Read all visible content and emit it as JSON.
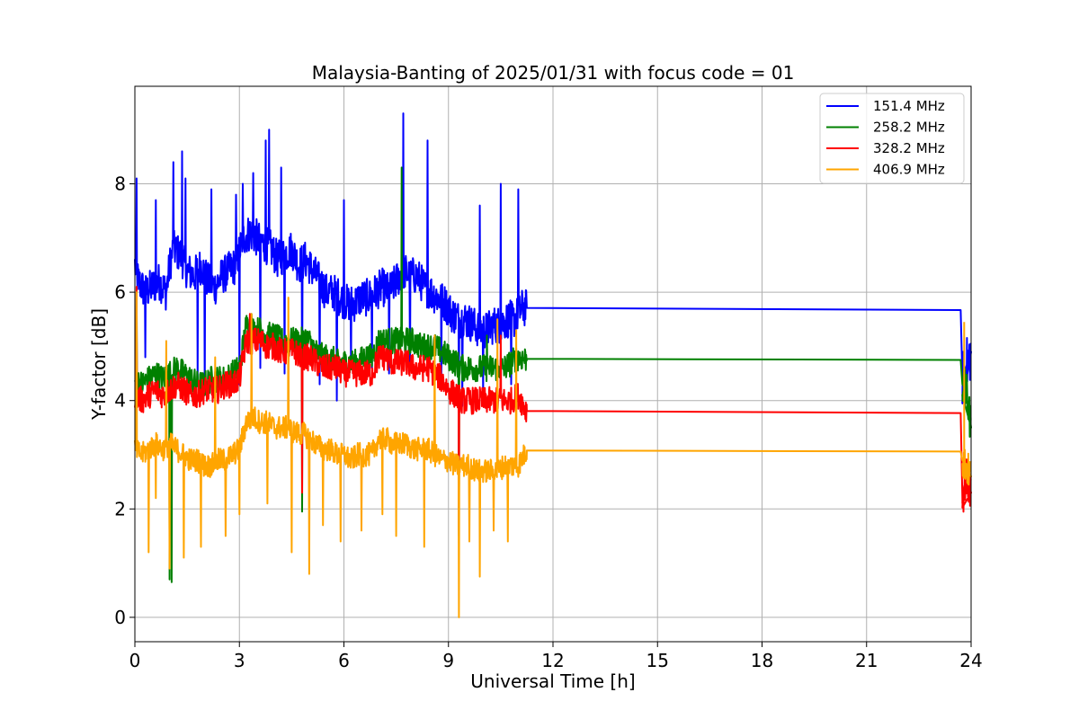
{
  "chart_data": {
    "type": "line",
    "title": "Malaysia-Banting of 2025/01/31 with focus code = 01",
    "xlabel": "Universal Time [h]",
    "ylabel": "Y-factor [dB]",
    "xlim": [
      0,
      24
    ],
    "ylim": [
      -0.45,
      9.8
    ],
    "x_ticks": [
      0,
      3,
      6,
      9,
      12,
      15,
      18,
      21,
      24
    ],
    "y_ticks": [
      0,
      2,
      4,
      6,
      8
    ],
    "grid": true,
    "legend_position": "top-right",
    "series": [
      {
        "name": "151.4 MHz",
        "color": "#0000ff",
        "x": [
          0,
          0.1,
          0.3,
          0.5,
          0.7,
          0.9,
          1.0,
          1.1,
          1.3,
          1.5,
          1.7,
          1.9,
          2.1,
          2.3,
          2.5,
          2.7,
          2.9,
          3.1,
          3.3,
          3.5,
          3.7,
          3.9,
          4.1,
          4.3,
          4.5,
          4.7,
          4.9,
          5.1,
          5.3,
          5.5,
          5.7,
          5.9,
          6.1,
          6.3,
          6.5,
          6.7,
          6.9,
          7.1,
          7.3,
          7.5,
          7.7,
          7.9,
          8.1,
          8.3,
          8.5,
          8.7,
          8.9,
          9.1,
          9.3,
          9.5,
          9.7,
          9.9,
          10.1,
          10.3,
          10.5,
          10.7,
          10.9,
          11.1,
          11.25,
          23.7,
          23.75,
          23.85,
          24.0
        ],
        "y": [
          6.5,
          6.2,
          6.0,
          6.1,
          6.2,
          6.0,
          6.5,
          6.8,
          6.7,
          6.4,
          6.3,
          6.5,
          6.2,
          6.1,
          6.3,
          6.4,
          6.5,
          7.0,
          7.1,
          7.0,
          6.9,
          6.8,
          6.6,
          6.7,
          6.8,
          6.5,
          6.6,
          6.4,
          6.2,
          6.0,
          6.0,
          5.9,
          5.8,
          5.8,
          5.9,
          5.9,
          6.0,
          6.1,
          6.0,
          6.2,
          6.4,
          6.3,
          6.3,
          6.1,
          6.0,
          5.9,
          5.8,
          5.6,
          5.5,
          5.5,
          5.4,
          5.3,
          5.3,
          5.4,
          5.4,
          5.5,
          5.5,
          5.7,
          5.71,
          5.67,
          4.4,
          4.6,
          4.9
        ],
        "spike_x": [
          0.05,
          0.6,
          1.1,
          1.35,
          1.45,
          2.2,
          2.9,
          3.1,
          3.4,
          3.75,
          3.85,
          4.2,
          6.0,
          7.7,
          8.4,
          9.9,
          10.5,
          11.0
        ],
        "spike_y": [
          8.1,
          7.7,
          8.4,
          8.6,
          8.1,
          7.9,
          7.8,
          8.0,
          8.2,
          8.8,
          9.0,
          8.3,
          7.7,
          9.3,
          8.8,
          7.6,
          8.0,
          7.9
        ],
        "dip_x": [
          0.3,
          1.8,
          2.0,
          3.0,
          3.6,
          4.3,
          4.8,
          5.3,
          5.8,
          6.2,
          6.8,
          7.3,
          7.9,
          8.8,
          9.3,
          9.4,
          10.0,
          10.8
        ],
        "dip_y": [
          4.8,
          4.4,
          4.1,
          4.3,
          4.6,
          4.5,
          4.1,
          4.3,
          4.0,
          4.6,
          4.6,
          4.5,
          4.6,
          4.3,
          4.0,
          3.9,
          4.1,
          4.3
        ]
      },
      {
        "name": "258.2 MHz",
        "color": "#008000",
        "x": [
          0,
          0.2,
          0.4,
          0.6,
          0.8,
          1.0,
          1.2,
          1.4,
          1.6,
          1.8,
          2.0,
          2.2,
          2.4,
          2.6,
          2.8,
          3.0,
          3.2,
          3.4,
          3.6,
          3.8,
          4.0,
          4.2,
          4.4,
          4.6,
          4.8,
          5.0,
          5.2,
          5.4,
          5.6,
          5.8,
          6.0,
          6.2,
          6.4,
          6.6,
          6.8,
          7.0,
          7.2,
          7.4,
          7.6,
          7.8,
          8.0,
          8.2,
          8.4,
          8.6,
          8.8,
          9.0,
          9.2,
          9.4,
          9.6,
          9.8,
          10.0,
          10.2,
          10.4,
          10.6,
          10.8,
          11.0,
          11.25,
          23.7,
          23.75,
          23.85,
          24.0
        ],
        "y": [
          4.4,
          4.3,
          4.4,
          4.5,
          4.4,
          4.5,
          4.6,
          4.5,
          4.4,
          4.3,
          4.3,
          4.4,
          4.4,
          4.4,
          4.5,
          4.6,
          5.4,
          5.3,
          5.3,
          5.2,
          5.2,
          5.1,
          5.1,
          5.1,
          5.1,
          5.1,
          4.9,
          4.8,
          4.8,
          4.7,
          4.7,
          4.7,
          4.7,
          4.8,
          4.8,
          5.1,
          5.1,
          5.1,
          5.1,
          5.1,
          5.1,
          5.0,
          5.0,
          5.0,
          4.9,
          4.8,
          4.7,
          4.6,
          4.6,
          4.6,
          4.6,
          4.6,
          4.6,
          4.6,
          4.7,
          4.8,
          4.77,
          4.75,
          4.3,
          4.2,
          3.5
        ],
        "spike_x": [
          0.05,
          3.35,
          4.9,
          7.65,
          10.1
        ],
        "spike_y": [
          6.0,
          5.6,
          5.3,
          8.3,
          5.2
        ],
        "dip_x": [
          1.0,
          1.05,
          4.8,
          9.3
        ],
        "dip_y": [
          0.7,
          0.65,
          1.95,
          1.5
        ]
      },
      {
        "name": "328.2 MHz",
        "color": "#ff0000",
        "x": [
          0,
          0.2,
          0.4,
          0.6,
          0.8,
          1.0,
          1.2,
          1.4,
          1.6,
          1.8,
          2.0,
          2.2,
          2.4,
          2.6,
          2.8,
          3.0,
          3.2,
          3.4,
          3.6,
          3.8,
          4.0,
          4.2,
          4.4,
          4.6,
          4.8,
          5.0,
          5.2,
          5.4,
          5.6,
          5.8,
          6.0,
          6.2,
          6.4,
          6.6,
          6.8,
          7.0,
          7.2,
          7.4,
          7.6,
          7.8,
          8.0,
          8.2,
          8.4,
          8.6,
          8.8,
          9.0,
          9.2,
          9.4,
          9.6,
          9.8,
          10.0,
          10.2,
          10.4,
          10.6,
          10.8,
          11.0,
          11.25,
          23.7,
          23.75,
          23.85,
          24.0
        ],
        "y": [
          4.1,
          4.0,
          4.1,
          4.2,
          4.1,
          4.2,
          4.3,
          4.2,
          4.1,
          4.1,
          4.2,
          4.2,
          4.2,
          4.3,
          4.3,
          4.4,
          5.1,
          5.1,
          5.1,
          5.0,
          5.0,
          4.9,
          4.9,
          4.9,
          4.8,
          4.8,
          4.7,
          4.6,
          4.6,
          4.6,
          4.5,
          4.5,
          4.5,
          4.5,
          4.5,
          4.8,
          4.8,
          4.7,
          4.7,
          4.7,
          4.6,
          4.6,
          4.6,
          4.5,
          4.4,
          4.2,
          4.1,
          4.0,
          4.0,
          4.0,
          4.0,
          4.0,
          4.0,
          4.0,
          4.0,
          4.1,
          3.81,
          3.77,
          2.2,
          2.6,
          2.3
        ],
        "spike_x": [
          0.05,
          3.3,
          7.1,
          10.5
        ],
        "spike_y": [
          6.1,
          5.6,
          5.0,
          5.2
        ],
        "dip_x": [
          4.8,
          9.3,
          23.75
        ],
        "dip_y": [
          2.3,
          1.6,
          2.1
        ]
      },
      {
        "name": "406.9 MHz",
        "color": "#ffa500",
        "x": [
          0,
          0.2,
          0.4,
          0.6,
          0.8,
          1.0,
          1.2,
          1.4,
          1.6,
          1.8,
          2.0,
          2.2,
          2.4,
          2.6,
          2.8,
          3.0,
          3.2,
          3.4,
          3.6,
          3.8,
          4.0,
          4.2,
          4.4,
          4.6,
          4.8,
          5.0,
          5.2,
          5.4,
          5.6,
          5.8,
          6.0,
          6.2,
          6.4,
          6.6,
          6.8,
          7.0,
          7.2,
          7.4,
          7.6,
          7.8,
          8.0,
          8.2,
          8.4,
          8.6,
          8.8,
          9.0,
          9.2,
          9.4,
          9.6,
          9.8,
          10.0,
          10.2,
          10.4,
          10.6,
          10.8,
          11.0,
          11.25,
          23.7,
          23.75,
          23.85,
          24.0
        ],
        "y": [
          3.1,
          3.0,
          3.1,
          3.2,
          3.1,
          3.2,
          3.1,
          3.0,
          2.9,
          2.9,
          2.8,
          2.8,
          2.9,
          2.9,
          3.0,
          3.1,
          3.6,
          3.7,
          3.6,
          3.6,
          3.5,
          3.5,
          3.5,
          3.4,
          3.4,
          3.3,
          3.2,
          3.1,
          3.1,
          3.0,
          3.0,
          2.9,
          3.0,
          3.0,
          3.0,
          3.3,
          3.3,
          3.2,
          3.2,
          3.2,
          3.1,
          3.1,
          3.1,
          3.0,
          2.9,
          2.9,
          2.8,
          2.8,
          2.8,
          2.7,
          2.7,
          2.7,
          2.7,
          2.8,
          2.8,
          2.8,
          3.08,
          3.06,
          2.9,
          2.8,
          2.6
        ],
        "spike_x": [
          0.05,
          0.4,
          0.9,
          1.4,
          2.3,
          3.35,
          4.4,
          7.5,
          8.6,
          10.4,
          10.95,
          23.8
        ],
        "spike_y": [
          6.0,
          5.1,
          5.1,
          5.0,
          4.8,
          5.6,
          5.9,
          4.9,
          5.2,
          5.5,
          5.3,
          5.45
        ],
        "dip_x": [
          0.4,
          0.6,
          1.0,
          1.4,
          1.9,
          2.6,
          3.0,
          3.8,
          4.5,
          5.0,
          5.4,
          5.9,
          6.5,
          7.1,
          7.5,
          8.3,
          9.3,
          9.6,
          9.9,
          10.3,
          10.7
        ],
        "dip_y": [
          1.2,
          2.2,
          0.9,
          1.1,
          1.3,
          1.5,
          1.9,
          2.1,
          1.2,
          0.8,
          1.7,
          1.4,
          1.6,
          1.9,
          1.5,
          1.3,
          0.0,
          1.4,
          0.75,
          1.6,
          1.4
        ]
      }
    ]
  }
}
